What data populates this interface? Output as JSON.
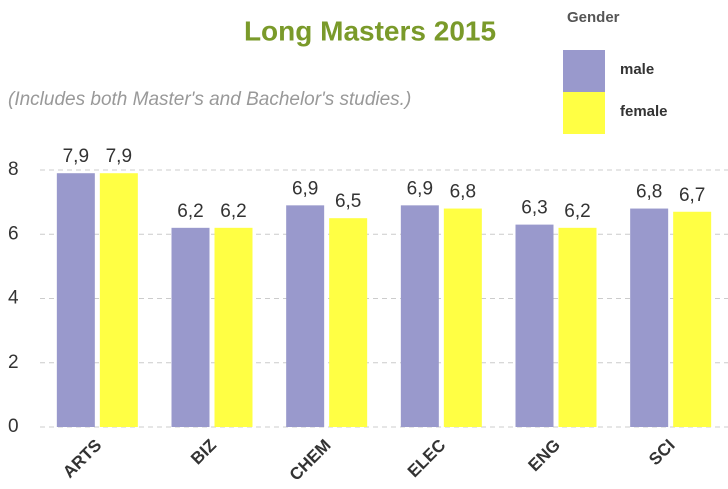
{
  "chart_data": {
    "type": "bar",
    "title": "Long Masters 2015",
    "subtitle": "(Includes both Master's and Bachelor's studies.)",
    "legend_title": "Gender",
    "categories": [
      "ARTS",
      "BIZ",
      "CHEM",
      "ELEC",
      "ENG",
      "SCI"
    ],
    "series": [
      {
        "name": "male",
        "color": "#9999cc",
        "values": [
          7.9,
          6.2,
          6.9,
          6.9,
          6.3,
          6.8
        ],
        "value_labels": [
          "7,9",
          "6,2",
          "6,9",
          "6,9",
          "6,3",
          "6,8"
        ]
      },
      {
        "name": "female",
        "color": "#ffff44",
        "values": [
          7.9,
          6.2,
          6.5,
          6.8,
          6.2,
          6.7
        ],
        "value_labels": [
          "7,9",
          "6,2",
          "6,5",
          "6,8",
          "6,2",
          "6,7"
        ]
      }
    ],
    "ylim": [
      0,
      8
    ],
    "yticks": [
      0,
      2,
      4,
      6,
      8
    ],
    "grid": true
  }
}
